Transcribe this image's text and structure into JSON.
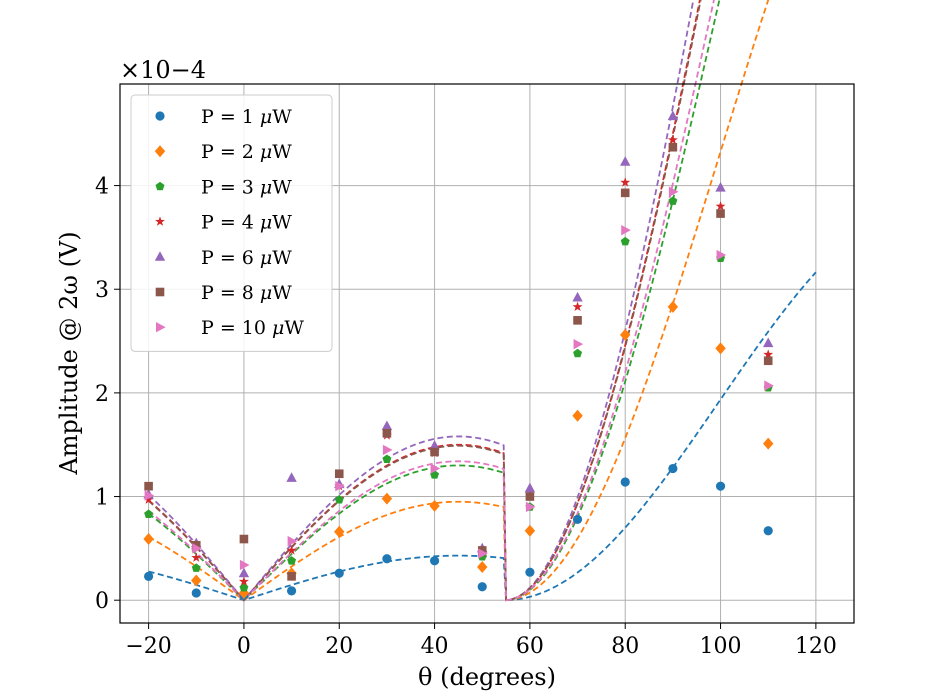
{
  "chart_data": {
    "type": "scatter",
    "title": "",
    "xlabel": "θ (degrees)",
    "ylabel": "Amplitude @ 2ω (V)",
    "y_scale_label": "×10−4",
    "y_scale_exponent": -4,
    "xlim": [
      -26,
      128
    ],
    "ylim": [
      -0.22,
      4.98
    ],
    "xticks": [
      -20,
      0,
      20,
      40,
      60,
      80,
      100,
      120
    ],
    "xtick_labels": [
      "−20",
      "0",
      "20",
      "40",
      "60",
      "80",
      "100",
      "120"
    ],
    "yticks": [
      0,
      1,
      2,
      3,
      4
    ],
    "ytick_labels": [
      "0",
      "1",
      "2",
      "3",
      "4"
    ],
    "grid": true,
    "legend_position": "top-left",
    "x": [
      -20,
      -10,
      0,
      10,
      20,
      30,
      40,
      50,
      60,
      70,
      80,
      90,
      100,
      110
    ],
    "series": [
      {
        "name": "P = 1 μW",
        "label_prefix": "P = 1 ",
        "marker": "circle",
        "color": "#1f77b4",
        "values": [
          0.23,
          0.07,
          0.05,
          0.09,
          0.26,
          0.4,
          0.38,
          0.13,
          0.27,
          0.78,
          1.14,
          1.27,
          1.1,
          0.67
        ],
        "fit_peaks": [
          0.43,
          1.28
        ]
      },
      {
        "name": "P = 2 μW",
        "label_prefix": "P = 2 ",
        "marker": "diamond",
        "color": "#ff7f0e",
        "values": [
          0.59,
          0.19,
          0.07,
          0.26,
          0.66,
          0.98,
          0.91,
          0.32,
          0.67,
          1.78,
          2.56,
          2.83,
          2.43,
          1.51
        ],
        "fit_peaks": [
          0.95,
          2.86
        ]
      },
      {
        "name": "P = 3 μW",
        "label_prefix": "P = 3 ",
        "marker": "pentagon",
        "color": "#2ca02c",
        "values": [
          0.83,
          0.31,
          0.12,
          0.38,
          0.97,
          1.36,
          1.21,
          0.42,
          0.9,
          2.38,
          3.46,
          3.85,
          3.3,
          2.05
        ],
        "fit_peaks": [
          1.3,
          3.86
        ]
      },
      {
        "name": "P = 4 μW",
        "label_prefix": "P = 4 ",
        "marker": "star",
        "color": "#d62728",
        "values": [
          0.97,
          0.41,
          0.18,
          0.48,
          1.1,
          1.59,
          1.42,
          0.46,
          1.02,
          2.83,
          4.03,
          4.44,
          3.8,
          2.37
        ],
        "fit_peaks": [
          1.5,
          4.5
        ]
      },
      {
        "name": "P = 6 μW",
        "label_prefix": "P = 6 ",
        "marker": "triangle-up",
        "color": "#9467bd",
        "values": [
          1.02,
          0.55,
          0.26,
          1.18,
          1.12,
          1.68,
          1.49,
          0.5,
          1.08,
          2.92,
          4.23,
          4.67,
          3.98,
          2.48
        ],
        "fit_peaks": [
          1.58,
          4.76
        ]
      },
      {
        "name": "P = 8 μW",
        "label_prefix": "P = 8 ",
        "marker": "square",
        "color": "#8c564b",
        "values": [
          1.1,
          0.53,
          0.59,
          0.23,
          1.22,
          1.61,
          1.43,
          0.48,
          1.0,
          2.7,
          3.93,
          4.37,
          3.73,
          2.31
        ],
        "fit_peaks": [
          1.49,
          4.47
        ]
      },
      {
        "name": "P = 10 μW",
        "label_prefix": "P = 10 ",
        "marker": "triangle-right",
        "color": "#e377c2",
        "values": [
          1.01,
          0.5,
          0.34,
          0.57,
          1.1,
          1.45,
          1.27,
          0.45,
          0.9,
          2.47,
          3.57,
          3.94,
          3.33,
          2.07
        ],
        "fit_peaks": [
          1.34,
          4.02
        ]
      }
    ],
    "fit_model": "|A sin(2θ)| for θ < 54.7°, B sin²(θ−54.7°)/sin²(35.3°) for θ ≥ 54.7°",
    "fit_zero_angle": 54.7,
    "fit_range": [
      -20,
      120
    ]
  }
}
